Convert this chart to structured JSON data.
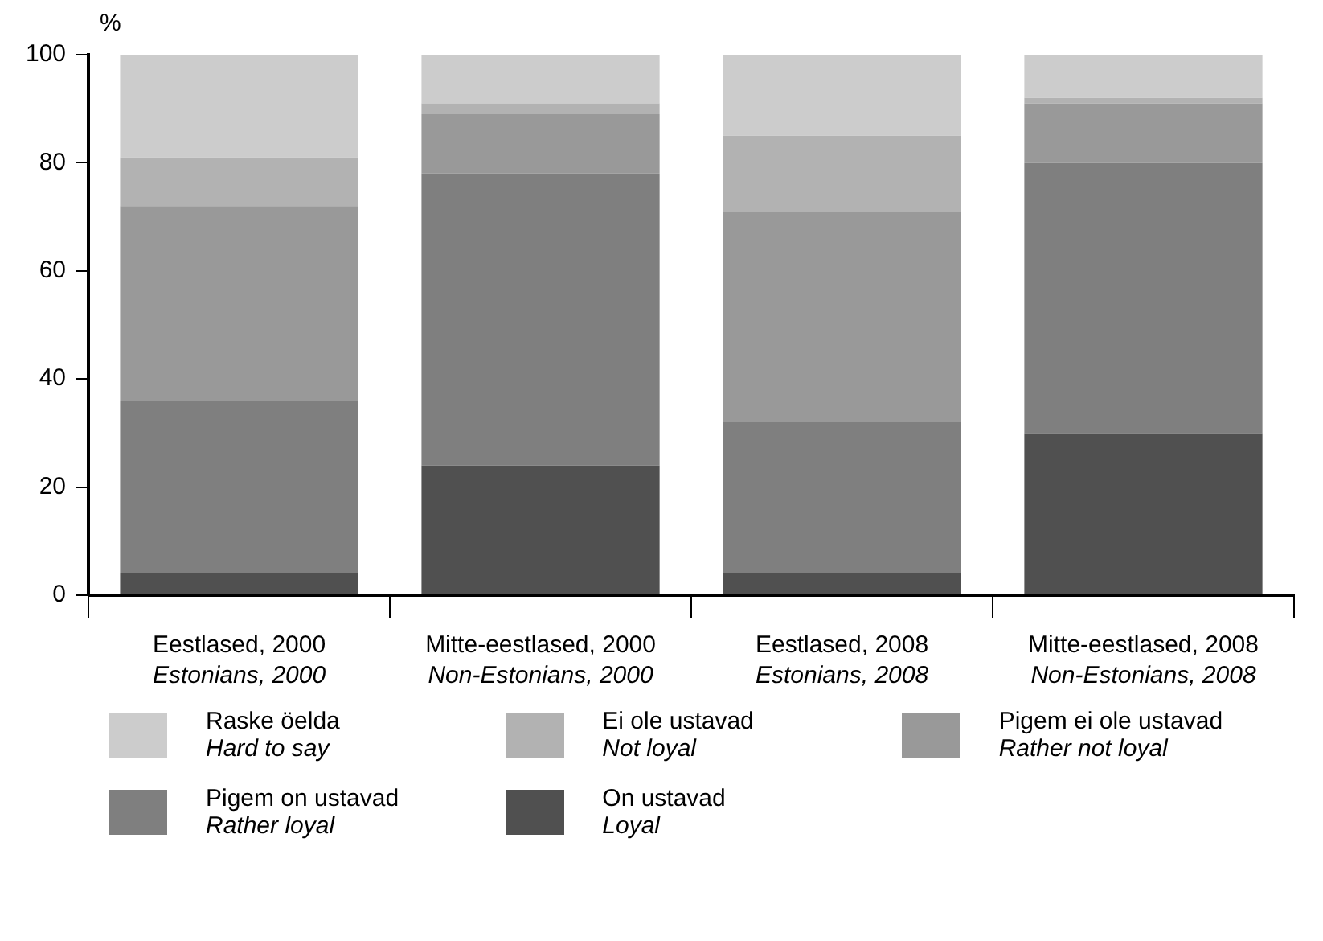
{
  "chart_data": {
    "type": "bar",
    "stacked": true,
    "ylabel": "%",
    "categories": [
      "Eestlased, 2000\nEstonians, 2000",
      "Mitte-eestlased, 2000\nNon-Estonians, 2000",
      "Eestlased, 2008\nEstonians, 2008",
      "Mitte-eestlased, 2008\nNon-Estonians, 2008"
    ],
    "series": [
      {
        "name": "On ustavad\nLoyal",
        "color": "#505050",
        "values": [
          4,
          24,
          4,
          30
        ]
      },
      {
        "name": "Pigem on ustavad\nRather loyal",
        "color": "#7f7f7f",
        "values": [
          32,
          54,
          28,
          50
        ]
      },
      {
        "name": "Pigem ei ole ustavad\nRather not loyal",
        "color": "#999999",
        "values": [
          36,
          11,
          39,
          11
        ]
      },
      {
        "name": "Ei ole ustavad\nNot loyal",
        "color": "#b2b2b2",
        "values": [
          9,
          2,
          14,
          1
        ]
      },
      {
        "name": "Raske öelda\nHard to say",
        "color": "#cccccc",
        "values": [
          19,
          9,
          15,
          8
        ]
      }
    ],
    "ylim": [
      0,
      100
    ],
    "yticks": [
      0,
      20,
      40,
      60,
      80,
      100
    ],
    "grid": false,
    "legend": "bottom"
  }
}
